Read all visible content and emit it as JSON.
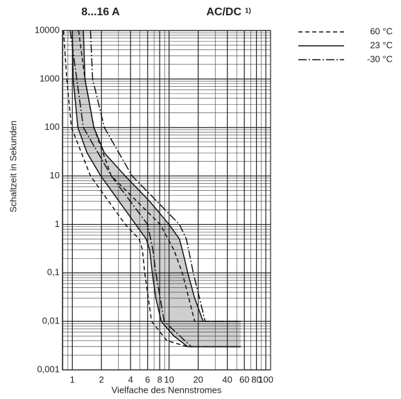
{
  "chart_data": {
    "type": "line",
    "title": "8...16 A",
    "subtitle": "AC/DC",
    "footnote_mark": "1)",
    "xlabel": "Vielfache des Nennstromes",
    "ylabel": "Schaltzeit in Sekunden",
    "xscale": "log",
    "yscale": "log",
    "xlim": [
      0.79,
      112
    ],
    "ylim": [
      0.001,
      10000
    ],
    "xticks": [
      1,
      2,
      4,
      6,
      8,
      10,
      20,
      40,
      60,
      80,
      100
    ],
    "yticks": [
      {
        "value": 0.001,
        "label": "0,001"
      },
      {
        "value": 0.01,
        "label": "0,01"
      },
      {
        "value": 0.1,
        "label": "0,1"
      },
      1,
      10,
      100,
      1000,
      10000
    ],
    "grid": true,
    "minor_grid": true,
    "legend": "outside-top-right",
    "band_series": 1,
    "band_color": "#cfcfcf",
    "series": [
      {
        "name": "60 °C",
        "color": "#111111",
        "style": "dashed",
        "curves": [
          {
            "x": [
              0.81,
              0.876,
              0.98,
              1.54,
              3.52,
              4.9,
              5.3,
              5.6,
              6.6,
              9.5,
              15.6,
              55
            ],
            "values": [
              10000,
              1000,
              100,
              10,
              1,
              0.5,
              0.3,
              0.1,
              0.01,
              0.004,
              0.003,
              0.003
            ]
          },
          {
            "x": [
              1.16,
              1.35,
              1.67,
              2.53,
              8.1,
              11.2,
              13.7,
              18.4,
              22.5,
              55
            ],
            "values": [
              10000,
              1000,
              100,
              10,
              1,
              0.3,
              0.1,
              0.01,
              0.01,
              0.01
            ]
          }
        ]
      },
      {
        "name": "23 °C",
        "color": "#111111",
        "style": "solid",
        "curves": [
          {
            "x": [
              1,
              1.02,
              1.14,
              1.42,
              1.97,
              4.51,
              5.8,
              6.3,
              6.7,
              7.3,
              8.3,
              11.2,
              15.6,
              55
            ],
            "values": [
              10000,
              1000,
              100,
              30,
              10,
              1,
              0.5,
              0.3,
              0.1,
              0.03,
              0.01,
              0.005,
              0.003,
              0.003
            ]
          },
          {
            "x": [
              1.3,
              1.35,
              1.67,
              2.14,
              3.52,
              6.3,
              10,
              12.8,
              14.4,
              15.6,
              18.4,
              22.5,
              55
            ],
            "values": [
              10000,
              1000,
              100,
              30,
              10,
              3,
              1,
              0.5,
              0.2,
              0.1,
              0.03,
              0.01,
              0.01
            ]
          }
        ]
      },
      {
        "name": "-30 °C",
        "color": "#111111",
        "style": "dashdot",
        "curves": [
          {
            "x": [
              0.95,
              1.3,
              2.53,
              6.0,
              6.8,
              7.3,
              8.9,
              17,
              55
            ],
            "values": [
              10000,
              100,
              10,
              1,
              0.3,
              0.1,
              0.01,
              0.003,
              0.003
            ]
          },
          {
            "x": [
              1.54,
              1.62,
              2.14,
              4.15,
              12.8,
              15.1,
              17.8,
              23.6,
              55
            ],
            "values": [
              10000,
              1000,
              100,
              10,
              1,
              0.5,
              0.1,
              0.01,
              0.01
            ]
          }
        ]
      }
    ]
  }
}
